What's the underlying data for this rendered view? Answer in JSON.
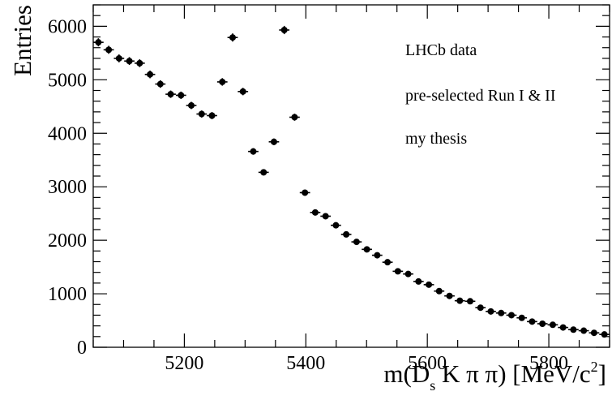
{
  "chart_data": {
    "type": "scatter",
    "title": "",
    "xlabel": "m(D_s K π π) [MeV/c^2]",
    "xlabel_parts": {
      "m_open": "m(D",
      "sub": "s",
      "mid": " K π π) [MeV/c",
      "sup": "2",
      "close": "]"
    },
    "ylabel": "Entries",
    "xlim": [
      5050,
      5900
    ],
    "ylim": [
      0,
      6400
    ],
    "xticks": [
      "5200",
      "5400",
      "5600",
      "5800"
    ],
    "yticks": [
      "0",
      "1000",
      "2000",
      "3000",
      "4000",
      "5000",
      "6000"
    ],
    "bin_width": 17,
    "annotations": [
      "LHCb data",
      "pre-selected Run I & II",
      "my thesis"
    ],
    "series": [
      {
        "x": [
          5058.5,
          5075.5,
          5092.5,
          5109.5,
          5126.5,
          5143.5,
          5160.5,
          5177.5,
          5194.5,
          5211.5,
          5228.5,
          5245.5,
          5262.5,
          5279.5,
          5296.5,
          5313.5,
          5330.5,
          5347.5,
          5364.5,
          5381.5,
          5398.5,
          5415.5,
          5432.5,
          5449.5,
          5466.5,
          5483.5,
          5500.5,
          5517.5,
          5534.5,
          5551.5,
          5568.5,
          5585.5,
          5602.5,
          5619.5,
          5636.5,
          5653.5,
          5670.5,
          5687.5,
          5704.5,
          5721.5,
          5738.5,
          5755.5,
          5772.5,
          5789.5,
          5806.5,
          5823.5,
          5840.5,
          5857.5,
          5874.5,
          5891.5
        ],
        "y": [
          5700,
          5560,
          5400,
          5350,
          5310,
          5100,
          4920,
          4730,
          4710,
          4520,
          4360,
          4330,
          4960,
          5790,
          4780,
          3660,
          3270,
          3840,
          5930,
          4300,
          2890,
          2520,
          2450,
          2280,
          2110,
          1970,
          1830,
          1720,
          1590,
          1420,
          1370,
          1230,
          1170,
          1050,
          960,
          870,
          860,
          740,
          670,
          640,
          600,
          550,
          480,
          440,
          420,
          370,
          330,
          310,
          270,
          240
        ]
      }
    ],
    "grid": false,
    "legend": "none"
  }
}
